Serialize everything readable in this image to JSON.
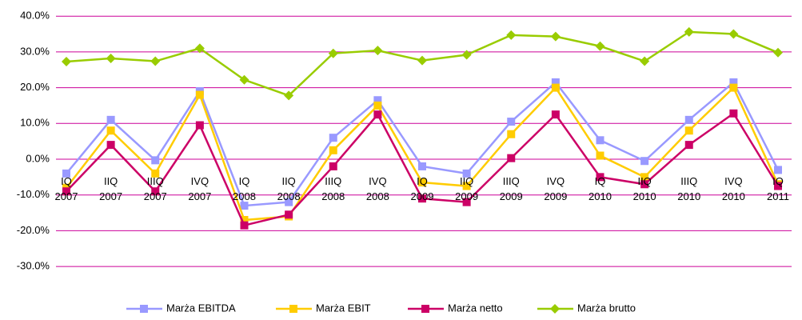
{
  "chart_data": {
    "type": "line",
    "categories": [
      "IQ 2007",
      "IIQ 2007",
      "IIIQ 2007",
      "IVQ 2007",
      "IQ 2008",
      "IIQ 2008",
      "IIIQ 2008",
      "IVQ 2008",
      "IQ 2009",
      "IIQ 2009",
      "IIIQ 2009",
      "IVQ 2009",
      "IQ 2010",
      "IIQ 2010",
      "IIIQ 2010",
      "IVQ 2010",
      "IQ 2011"
    ],
    "series": [
      {
        "name": "Marża EBITDA",
        "color": "#9999ff",
        "marker": "square",
        "values": [
          -4,
          11,
          -0.3,
          19,
          -13,
          -12,
          6,
          16.5,
          -2,
          -4,
          10.5,
          21.5,
          5.3,
          -0.5,
          11,
          21.5,
          -3
        ]
      },
      {
        "name": "Marża EBIT",
        "color": "#ffcc00",
        "marker": "square",
        "values": [
          -8,
          8,
          -4,
          18,
          -17,
          -16,
          2.5,
          15,
          -6.5,
          -7.5,
          7,
          20,
          1,
          -5,
          8,
          20,
          -7
        ]
      },
      {
        "name": "Marża netto",
        "color": "#cc0066",
        "marker": "square",
        "values": [
          -9,
          4,
          -9,
          9.5,
          -18.5,
          -15.5,
          -2,
          12.5,
          -11,
          -12,
          0.3,
          12.5,
          -5,
          -7,
          4,
          12.8,
          -7.5
        ]
      },
      {
        "name": "Marża brutto",
        "color": "#99cc00",
        "marker": "diamond",
        "values": [
          27.3,
          28.2,
          27.4,
          31,
          22.2,
          17.8,
          29.6,
          30.4,
          27.6,
          29.2,
          34.7,
          34.3,
          31.6,
          27.4,
          35.6,
          35,
          29.8
        ]
      }
    ],
    "ylim": [
      -40,
      40
    ],
    "yticks": [
      {
        "value": -30,
        "label": "-30.0%"
      },
      {
        "value": -20,
        "label": "-20.0%"
      },
      {
        "value": -10,
        "label": "-10.0%"
      },
      {
        "value": 0,
        "label": "0.0%"
      },
      {
        "value": 10,
        "label": "10.0%"
      },
      {
        "value": 20,
        "label": "20.0%"
      },
      {
        "value": 30,
        "label": "30.0%"
      },
      {
        "value": 40,
        "label": "40.0%"
      }
    ],
    "grid": true,
    "grid_color": "#cc0099",
    "legend": "bottom"
  }
}
